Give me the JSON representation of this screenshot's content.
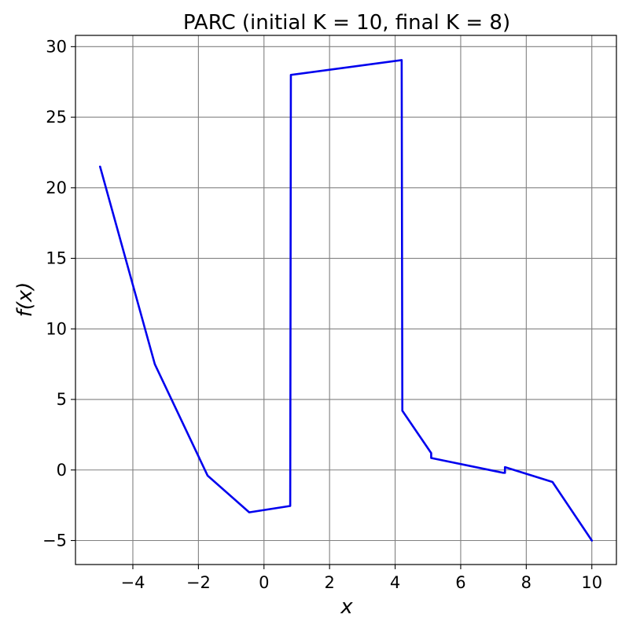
{
  "chart_data": {
    "type": "line",
    "title": "PARC (initial K = 10, final K = 8)",
    "xlabel": "x",
    "ylabel": "f(x)",
    "xlim": [
      -5.75,
      10.75
    ],
    "ylim": [
      -6.7,
      30.8
    ],
    "xticks": [
      -4,
      -2,
      0,
      2,
      4,
      6,
      8,
      10
    ],
    "yticks": [
      -5,
      0,
      5,
      10,
      15,
      20,
      25,
      30
    ],
    "xtick_labels": [
      "−4",
      "−2",
      "0",
      "2",
      "4",
      "6",
      "8",
      "10"
    ],
    "ytick_labels": [
      "−5",
      "0",
      "5",
      "10",
      "15",
      "20",
      "25",
      "30"
    ],
    "grid": true,
    "series": [
      {
        "color": "#0000ee",
        "x": [
          -5.0,
          -3.33,
          -1.72,
          -1.67,
          -0.45,
          0.8,
          0.82,
          4.2,
          4.22,
          5.1,
          5.1,
          7.3,
          7.35,
          7.35,
          8.8,
          10.0
        ],
        "y": [
          21.5,
          7.5,
          -0.4,
          -0.5,
          -3.0,
          -2.55,
          28.0,
          29.05,
          4.2,
          1.2,
          0.85,
          -0.2,
          -0.2,
          0.2,
          -0.85,
          -5.0
        ]
      }
    ]
  }
}
